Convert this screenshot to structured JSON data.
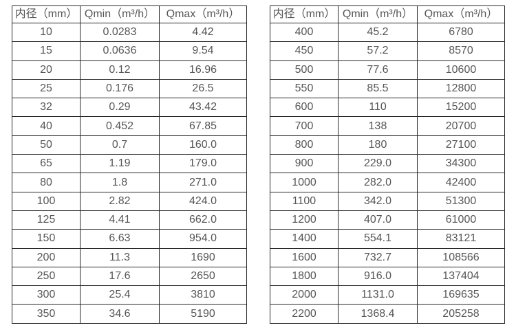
{
  "colors": {
    "background": "#ffffff",
    "border": "#262626",
    "text": "#565656"
  },
  "tables": [
    {
      "name": "flow-table-small-diameter",
      "headers": [
        "内径（mm）",
        "Qmin（m³/h）",
        "Qmax（m³/h）"
      ],
      "rows": [
        [
          "10",
          "0.0283",
          "4.42"
        ],
        [
          "15",
          "0.0636",
          "9.54"
        ],
        [
          "20",
          "0.12",
          "16.96"
        ],
        [
          "25",
          "0.176",
          "26.5"
        ],
        [
          "32",
          "0.29",
          "43.42"
        ],
        [
          "40",
          "0.452",
          "67.85"
        ],
        [
          "50",
          "0.7",
          "160.0"
        ],
        [
          "65",
          "1.19",
          "179.0"
        ],
        [
          "80",
          "1.8",
          "271.0"
        ],
        [
          "100",
          "2.82",
          "424.0"
        ],
        [
          "125",
          "4.41",
          "662.0"
        ],
        [
          "150",
          "6.63",
          "954.0"
        ],
        [
          "200",
          "11.3",
          "1690"
        ],
        [
          "250",
          "17.6",
          "2650"
        ],
        [
          "300",
          "25.4",
          "3810"
        ],
        [
          "350",
          "34.6",
          "5190"
        ]
      ]
    },
    {
      "name": "flow-table-large-diameter",
      "headers": [
        "内径（mm）",
        "Qmin（m³/h）",
        "Qmax（m³/h）"
      ],
      "rows": [
        [
          "400",
          "45.2",
          "6780"
        ],
        [
          "450",
          "57.2",
          "8570"
        ],
        [
          "500",
          "77.6",
          "10600"
        ],
        [
          "550",
          "85.5",
          "12800"
        ],
        [
          "600",
          "110",
          "15200"
        ],
        [
          "700",
          "138",
          "20700"
        ],
        [
          "800",
          "180",
          "27100"
        ],
        [
          "900",
          "229.0",
          "34300"
        ],
        [
          "1000",
          "282.0",
          "42400"
        ],
        [
          "1100",
          "342.0",
          "51300"
        ],
        [
          "1200",
          "407.0",
          "61000"
        ],
        [
          "1400",
          "554.1",
          "83121"
        ],
        [
          "1600",
          "732.7",
          "108566"
        ],
        [
          "1800",
          "916.0",
          "137404"
        ],
        [
          "2000",
          "1131.0",
          "169635"
        ],
        [
          "2200",
          "1368.4",
          "205258"
        ]
      ]
    }
  ]
}
